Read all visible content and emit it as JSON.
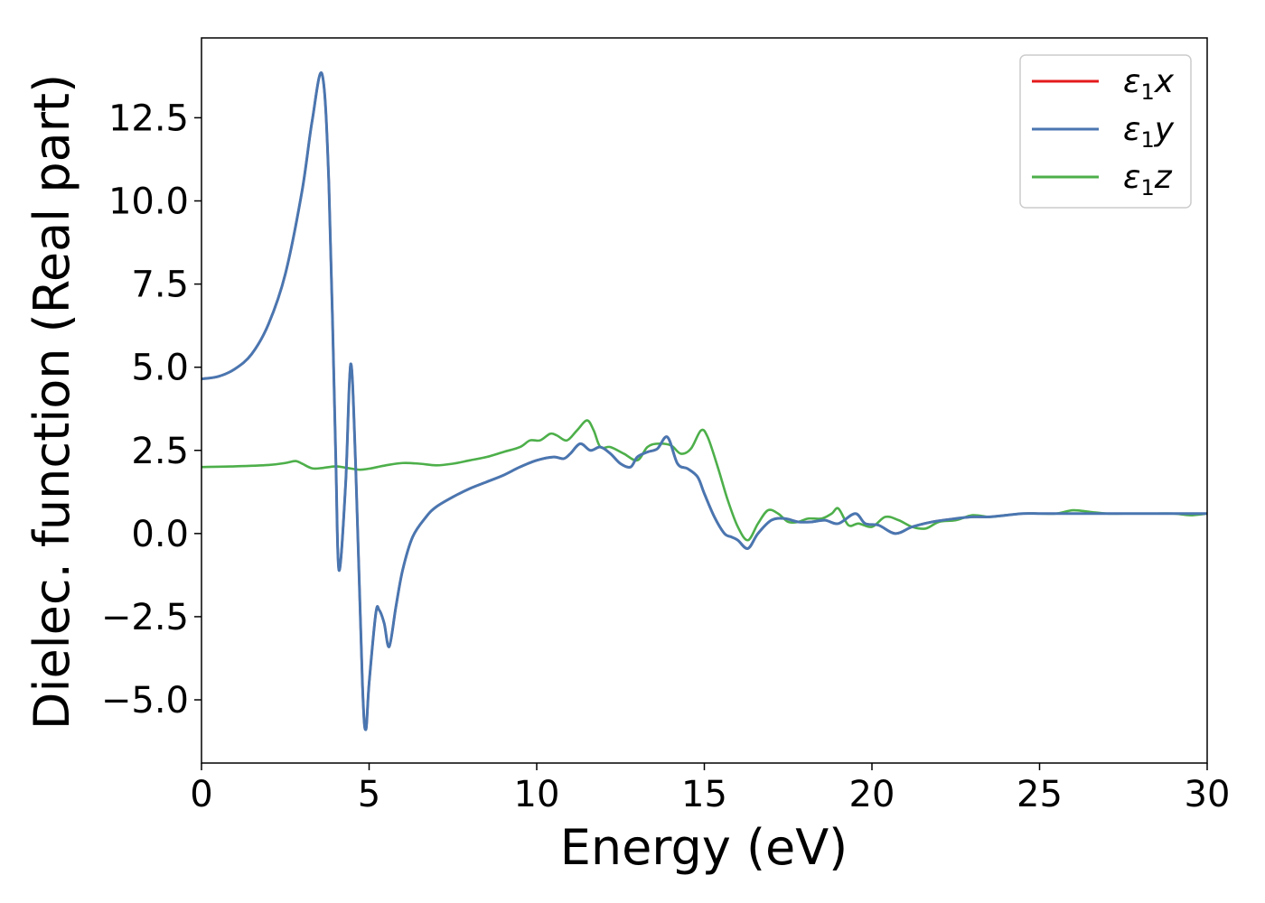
{
  "chart_data": {
    "type": "line",
    "title": "",
    "xlabel": "Energy (eV)",
    "ylabel": "Dielec. function (Real part)",
    "xlim": [
      0,
      30
    ],
    "ylim": [
      -6.9,
      14.9
    ],
    "xticks": [
      0,
      5,
      10,
      15,
      20,
      25,
      30
    ],
    "xtick_labels": [
      "0",
      "5",
      "10",
      "15",
      "20",
      "25",
      "30"
    ],
    "yticks": [
      -5.0,
      -2.5,
      0.0,
      2.5,
      5.0,
      7.5,
      10.0,
      12.5
    ],
    "ytick_labels": [
      "−5.0",
      "−2.5",
      "0.0",
      "2.5",
      "5.0",
      "7.5",
      "10.0",
      "12.5"
    ],
    "grid": false,
    "legend_position": "top-right",
    "series": [
      {
        "name": "ε",
        "name_sub": "1",
        "name_suffix": "x",
        "color": "#e41a1c",
        "x": [
          0,
          0.5,
          1.0,
          1.5,
          2.0,
          2.5,
          3.0,
          3.3,
          3.6,
          3.8,
          4.0,
          4.1,
          4.3,
          4.45,
          4.6,
          4.8,
          4.9,
          5.0,
          5.2,
          5.3,
          5.45,
          5.6,
          5.8,
          6.0,
          6.3,
          6.7,
          7.0,
          7.5,
          8.0,
          8.5,
          9.0,
          9.5,
          10.0,
          10.5,
          10.8,
          11.0,
          11.3,
          11.6,
          11.9,
          12.2,
          12.5,
          12.8,
          13.0,
          13.3,
          13.6,
          13.9,
          14.2,
          14.5,
          14.8,
          15.0,
          15.3,
          15.6,
          15.8,
          16.0,
          16.3,
          16.6,
          17.0,
          17.4,
          17.8,
          18.2,
          18.6,
          19.0,
          19.5,
          19.8,
          20.2,
          20.7,
          21.2,
          21.8,
          22.5,
          23.0,
          23.5,
          24.0,
          24.5,
          25.0,
          25.5,
          26.0,
          26.5,
          27.0,
          27.5,
          28.0,
          28.5,
          29.0,
          29.5,
          30.0
        ],
        "y": [
          4.65,
          4.72,
          4.95,
          5.4,
          6.3,
          7.8,
          10.3,
          12.4,
          13.8,
          10.5,
          2.5,
          -1.1,
          1.5,
          5.1,
          2.0,
          -4.5,
          -5.9,
          -4.5,
          -2.4,
          -2.3,
          -2.7,
          -3.4,
          -2.2,
          -1.1,
          -0.1,
          0.5,
          0.8,
          1.1,
          1.35,
          1.55,
          1.75,
          2.0,
          2.2,
          2.3,
          2.25,
          2.4,
          2.7,
          2.5,
          2.6,
          2.4,
          2.1,
          2.0,
          2.3,
          2.45,
          2.55,
          2.9,
          2.1,
          1.95,
          1.7,
          1.2,
          0.5,
          0.0,
          -0.1,
          -0.2,
          -0.45,
          0.0,
          0.4,
          0.45,
          0.35,
          0.35,
          0.4,
          0.3,
          0.6,
          0.3,
          0.25,
          0.0,
          0.2,
          0.35,
          0.45,
          0.5,
          0.5,
          0.55,
          0.6,
          0.6,
          0.6,
          0.6,
          0.6,
          0.6,
          0.6,
          0.6,
          0.6,
          0.6,
          0.6,
          0.6
        ]
      },
      {
        "name": "ε",
        "name_sub": "1",
        "name_suffix": "y",
        "color": "#4a76b0",
        "x": [
          0,
          0.5,
          1.0,
          1.5,
          2.0,
          2.5,
          3.0,
          3.3,
          3.6,
          3.8,
          4.0,
          4.1,
          4.3,
          4.45,
          4.6,
          4.8,
          4.9,
          5.0,
          5.2,
          5.3,
          5.45,
          5.6,
          5.8,
          6.0,
          6.3,
          6.7,
          7.0,
          7.5,
          8.0,
          8.5,
          9.0,
          9.5,
          10.0,
          10.5,
          10.8,
          11.0,
          11.3,
          11.6,
          11.9,
          12.2,
          12.5,
          12.8,
          13.0,
          13.3,
          13.6,
          13.9,
          14.2,
          14.5,
          14.8,
          15.0,
          15.3,
          15.6,
          15.8,
          16.0,
          16.3,
          16.6,
          17.0,
          17.4,
          17.8,
          18.2,
          18.6,
          19.0,
          19.5,
          19.8,
          20.2,
          20.7,
          21.2,
          21.8,
          22.5,
          23.0,
          23.5,
          24.0,
          24.5,
          25.0,
          25.5,
          26.0,
          26.5,
          27.0,
          27.5,
          28.0,
          28.5,
          29.0,
          29.5,
          30.0
        ],
        "y": [
          4.65,
          4.72,
          4.95,
          5.4,
          6.3,
          7.8,
          10.3,
          12.4,
          13.8,
          10.5,
          2.5,
          -1.1,
          1.5,
          5.1,
          2.0,
          -4.5,
          -5.9,
          -4.5,
          -2.4,
          -2.3,
          -2.7,
          -3.4,
          -2.2,
          -1.1,
          -0.1,
          0.5,
          0.8,
          1.1,
          1.35,
          1.55,
          1.75,
          2.0,
          2.2,
          2.3,
          2.25,
          2.4,
          2.7,
          2.5,
          2.6,
          2.4,
          2.1,
          2.0,
          2.3,
          2.45,
          2.55,
          2.9,
          2.1,
          1.95,
          1.7,
          1.2,
          0.5,
          0.0,
          -0.1,
          -0.2,
          -0.45,
          0.0,
          0.4,
          0.45,
          0.35,
          0.35,
          0.4,
          0.3,
          0.6,
          0.3,
          0.25,
          0.0,
          0.2,
          0.35,
          0.45,
          0.5,
          0.5,
          0.55,
          0.6,
          0.6,
          0.6,
          0.6,
          0.6,
          0.6,
          0.6,
          0.6,
          0.6,
          0.6,
          0.6,
          0.6
        ]
      },
      {
        "name": "ε",
        "name_sub": "1",
        "name_suffix": "z",
        "color": "#4daf4a",
        "x": [
          0,
          1.0,
          2.0,
          2.5,
          2.8,
          3.0,
          3.3,
          3.6,
          4.0,
          4.3,
          4.7,
          5.0,
          5.5,
          6.0,
          6.5,
          7.0,
          7.5,
          8.0,
          8.5,
          9.0,
          9.5,
          9.8,
          10.1,
          10.4,
          10.6,
          10.9,
          11.2,
          11.5,
          11.7,
          11.9,
          12.2,
          12.6,
          13.0,
          13.3,
          13.6,
          14.0,
          14.3,
          14.6,
          14.9,
          15.1,
          15.4,
          15.7,
          16.0,
          16.3,
          16.6,
          16.9,
          17.2,
          17.5,
          17.8,
          18.1,
          18.5,
          18.8,
          19.0,
          19.3,
          19.6,
          20.0,
          20.4,
          20.8,
          21.2,
          21.6,
          22.0,
          22.5,
          23.0,
          23.5,
          24.0,
          24.5,
          25.0,
          25.5,
          26.0,
          26.5,
          27.0,
          27.5,
          28.0,
          28.5,
          29.0,
          29.5,
          30.0
        ],
        "y": [
          2.0,
          2.02,
          2.06,
          2.12,
          2.18,
          2.1,
          1.96,
          1.97,
          2.02,
          1.98,
          1.92,
          1.95,
          2.05,
          2.12,
          2.1,
          2.05,
          2.1,
          2.2,
          2.3,
          2.45,
          2.6,
          2.8,
          2.8,
          3.0,
          2.95,
          2.8,
          3.1,
          3.4,
          3.1,
          2.6,
          2.6,
          2.4,
          2.2,
          2.6,
          2.7,
          2.65,
          2.4,
          2.55,
          3.1,
          2.9,
          2.0,
          1.0,
          0.2,
          -0.2,
          0.3,
          0.7,
          0.6,
          0.35,
          0.35,
          0.45,
          0.45,
          0.6,
          0.75,
          0.25,
          0.3,
          0.2,
          0.5,
          0.4,
          0.2,
          0.15,
          0.35,
          0.4,
          0.55,
          0.5,
          0.55,
          0.6,
          0.6,
          0.6,
          0.7,
          0.65,
          0.6,
          0.6,
          0.6,
          0.6,
          0.6,
          0.55,
          0.6
        ]
      }
    ]
  }
}
